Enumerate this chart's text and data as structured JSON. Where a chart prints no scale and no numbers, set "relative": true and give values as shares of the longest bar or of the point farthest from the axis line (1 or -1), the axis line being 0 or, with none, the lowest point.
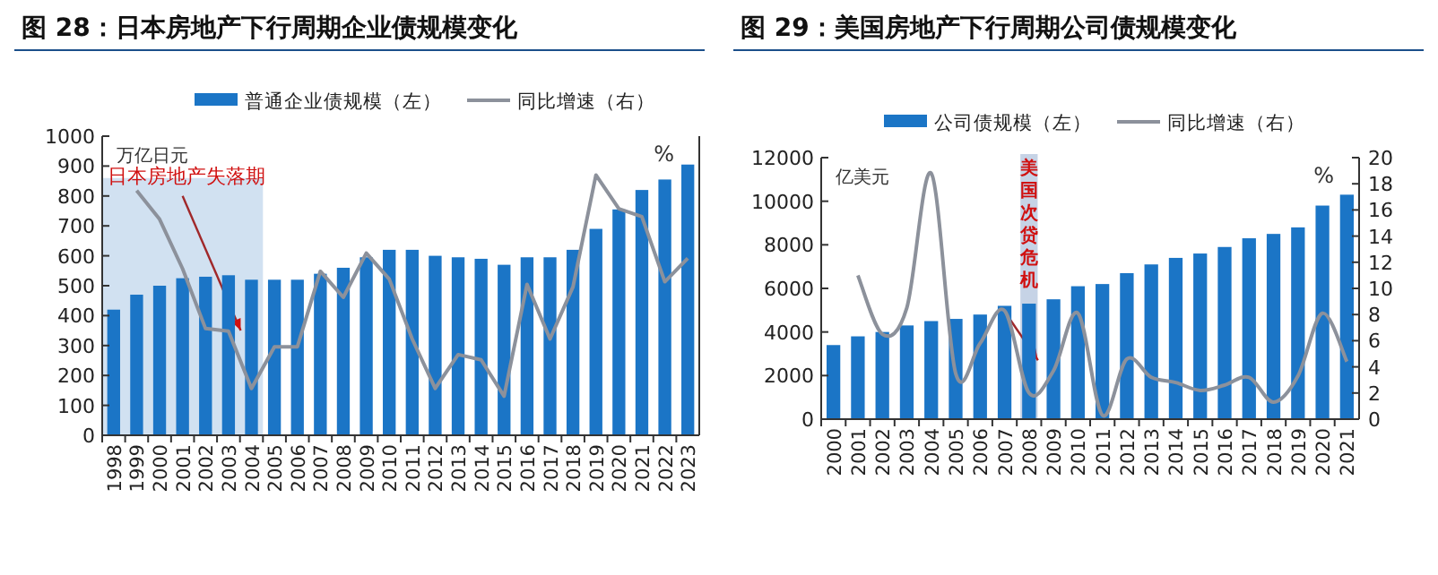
{
  "chart_data": [
    {
      "type": "bar",
      "title": "图 28：日本房地产下行周期企业债规模变化",
      "ylabel": "万亿日元",
      "categories": [
        "1998",
        "1999",
        "2000",
        "2001",
        "2002",
        "2003",
        "2004",
        "2005",
        "2006",
        "2007",
        "2008",
        "2009",
        "2010",
        "2011",
        "2012",
        "2013",
        "2014",
        "2015",
        "2016",
        "2017",
        "2018",
        "2019",
        "2020",
        "2021",
        "2022",
        "2023"
      ],
      "series": [
        {
          "name": "普通企业债规模（左）",
          "color": "#1b75c6",
          "values": [
            420,
            470,
            500,
            525,
            530,
            535,
            520,
            520,
            520,
            540,
            560,
            595,
            620,
            620,
            600,
            595,
            590,
            570,
            595,
            595,
            620,
            690,
            755,
            820,
            855,
            905
          ]
        }
      ],
      "ylim": [
        0,
        1000
      ],
      "yticks": [
        0,
        100,
        200,
        300,
        400,
        500,
        600,
        700,
        800,
        900,
        1000
      ],
      "bands": [
        {
          "axis": "x",
          "from": "1998",
          "to": "2004",
          "label": "日本房地产失落期",
          "color": "#c9dcef"
        }
      ],
      "legend": "top",
      "grid": false
    },
    {
      "type": "line",
      "relative": true,
      "y2label": "%",
      "categories": [
        null,
        null,
        null,
        null,
        null,
        null,
        null,
        null,
        null,
        null,
        null,
        null,
        null,
        null,
        null,
        null,
        null,
        null,
        null,
        null,
        null,
        null,
        null,
        null,
        null
      ],
      "series": [
        {
          "name": "同比增速（右）",
          "color": "#8c919b",
          "values": [
            0.94,
            0.83,
            0.64,
            0.41,
            0.4,
            0.18,
            0.34,
            0.34,
            0.63,
            0.53,
            0.7,
            0.6,
            0.37,
            0.18,
            0.31,
            0.29,
            0.15,
            0.58,
            0.37,
            0.57,
            1,
            0.87,
            0.84,
            0.59,
            0.68
          ]
        }
      ],
      "legend": "top"
    },
    {
      "type": "bar",
      "title": "图 29：美国房地产下行周期公司债规模变化",
      "ylabel": "亿美元",
      "y2label": "%",
      "categories": [
        "2000",
        "2001",
        "2002",
        "2003",
        "2004",
        "2005",
        "2006",
        "2007",
        "2008",
        "2009",
        "2010",
        "2011",
        "2012",
        "2013",
        "2014",
        "2015",
        "2016",
        "2017",
        "2018",
        "2019",
        "2020",
        "2021"
      ],
      "series": [
        {
          "name": "公司债规模（左）",
          "color": "#1b75c6",
          "values": [
            3400,
            3800,
            4000,
            4300,
            4500,
            4600,
            4800,
            5200,
            5300,
            5500,
            6100,
            6200,
            6700,
            7100,
            7400,
            7600,
            7900,
            8300,
            8500,
            8800,
            9800,
            10300
          ]
        },
        {
          "name": "同比增速（右）",
          "type": "line",
          "axis": "y2",
          "color": "#8c919b",
          "values": [
            null,
            11,
            6.5,
            8.5,
            18.8,
            3.5,
            5.8,
            8.3,
            2.0,
            3.7,
            8.1,
            0.3,
            4.6,
            3.2,
            2.8,
            2.2,
            2.6,
            3.2,
            1.3,
            3.3,
            8.1,
            4.4
          ]
        }
      ],
      "ylim": [
        0,
        12000
      ],
      "yticks": [
        0,
        2000,
        4000,
        6000,
        8000,
        10000,
        12000
      ],
      "y2lim": [
        0,
        20
      ],
      "y2ticks": [
        0,
        2,
        4,
        6,
        8,
        10,
        12,
        14,
        16,
        18,
        20
      ],
      "bands": [
        {
          "axis": "x",
          "from": "2008",
          "to": "2008",
          "label": "美国次贷危机",
          "color": "#bccbe2"
        }
      ],
      "legend": "top",
      "grid": false
    }
  ]
}
